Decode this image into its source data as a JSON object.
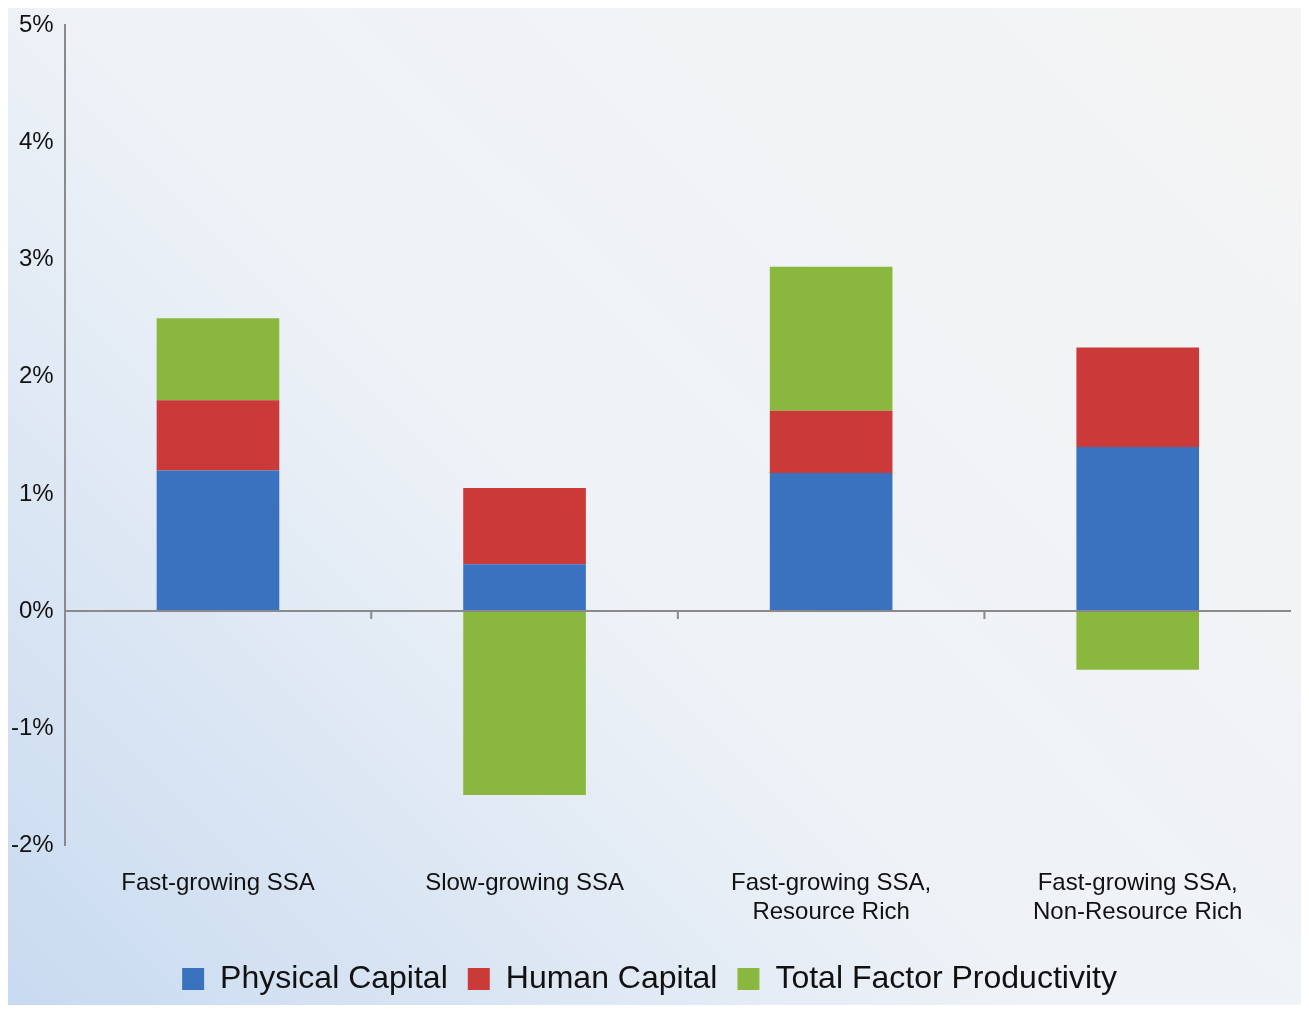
{
  "chart_data": {
    "type": "bar",
    "stacked": true,
    "categories": [
      "Fast-growing SSA",
      "Slow-growing SSA",
      "Fast-growing SSA, Resource Rich",
      "Fast-growing SSA, Non-Resource Rich"
    ],
    "series": [
      {
        "name": "Physical Capital",
        "color": "#3a72c0",
        "values": [
          1.2,
          0.4,
          1.18,
          1.4
        ]
      },
      {
        "name": "Human Capital",
        "color": "#c93a38",
        "values": [
          0.6,
          0.65,
          0.53,
          0.85
        ]
      },
      {
        "name": "Total Factor Productivity",
        "color": "#8ab83e",
        "values": [
          0.7,
          -1.57,
          1.23,
          -0.5
        ]
      }
    ],
    "ylim": [
      -2,
      5
    ],
    "yticks": [
      {
        "value": -2,
        "label": "-2%"
      },
      {
        "value": -1,
        "label": "-1%"
      },
      {
        "value": 0,
        "label": "0%"
      },
      {
        "value": 1,
        "label": "1%"
      },
      {
        "value": 2,
        "label": "2%"
      },
      {
        "value": 3,
        "label": "3%"
      },
      {
        "value": 4,
        "label": "4%"
      },
      {
        "value": 5,
        "label": "5%"
      }
    ],
    "ref_lines": [
      {
        "axis": "y",
        "value": 0,
        "color": "#8a8a8a"
      }
    ],
    "grid": false,
    "legend": "bottom"
  }
}
